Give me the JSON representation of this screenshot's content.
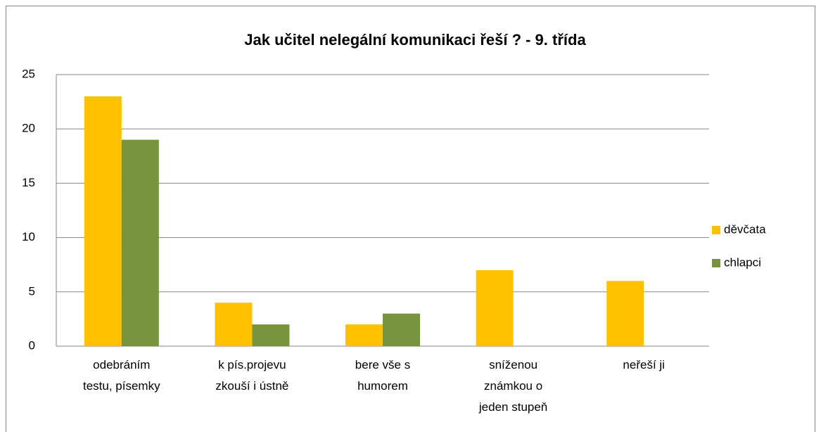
{
  "chart_data": {
    "type": "bar",
    "title": "Jak učitel nelegální komunikaci řeší ? - 9. třída",
    "categories": [
      "odebráním\ntestu, písemky",
      "k pís.projevu\nzkouší i ústně",
      "bere vše s\nhumorem",
      "sníženou\nznámkou o\njeden stupeň",
      "neřeší ji"
    ],
    "series": [
      {
        "name": "děvčata",
        "color": "#ffc000",
        "values": [
          23,
          4,
          2,
          7,
          6
        ]
      },
      {
        "name": "chlapci",
        "color": "#77933c",
        "values": [
          19,
          2,
          3,
          0,
          0
        ]
      }
    ],
    "ylim": [
      0,
      25
    ],
    "yticks": [
      0,
      5,
      10,
      15,
      20,
      25
    ],
    "grid": true,
    "legend": "right"
  }
}
